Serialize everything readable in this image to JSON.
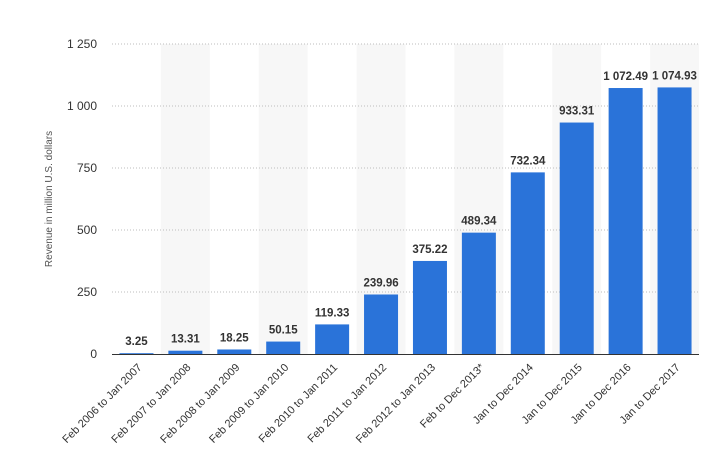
{
  "chart_data": {
    "type": "bar",
    "title": "",
    "xlabel": "",
    "ylabel": "Revenue in million U.S. dollars",
    "ylim": [
      0,
      1250
    ],
    "yticks": [
      0,
      250,
      500,
      750,
      1000,
      1250
    ],
    "ytick_labels": [
      "0",
      "250",
      "500",
      "750",
      "1 000",
      "1 250"
    ],
    "grid": true,
    "bar_color": "#2a73d9",
    "categories": [
      "Feb 2006 to Jan 2007",
      "Feb 2007 to Jan 2008",
      "Feb 2008 to Jan 2009",
      "Feb 2009 to Jan 2010",
      "Feb 2010 to Jan 2011",
      "Feb 2011 to Jan 2012",
      "Feb 2012 to Jan 2013",
      "Feb to Dec 2013*",
      "Jan to Dec 2014",
      "Jan to Dec 2015",
      "Jan to Dec 2016",
      "Jan to Dec 2017"
    ],
    "values": [
      3.25,
      13.31,
      18.25,
      50.15,
      119.33,
      239.96,
      375.22,
      489.34,
      732.34,
      933.31,
      1072.49,
      1074.93
    ],
    "value_labels": [
      "3.25",
      "13.31",
      "18.25",
      "50.15",
      "119.33",
      "239.96",
      "375.22",
      "489.34",
      "732.34",
      "933.31",
      "1 072.49",
      "1 074.93"
    ]
  }
}
